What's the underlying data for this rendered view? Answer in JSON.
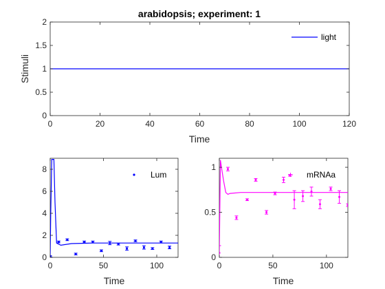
{
  "colors": {
    "blue": "#0000ff",
    "magenta": "#ff00ff",
    "axis": "#262626"
  },
  "chart_data": [
    {
      "type": "line",
      "title": "arabidopsis; experiment: 1",
      "xlabel": "Time",
      "ylabel": "Stimuli",
      "xlim": [
        0,
        120
      ],
      "ylim": [
        0,
        2
      ],
      "xticks": [
        "0",
        "20",
        "40",
        "60",
        "80",
        "100",
        "120"
      ],
      "yticks": [
        "0",
        "0.5",
        "1",
        "1.5",
        "2"
      ],
      "legend": "top-right",
      "series": [
        {
          "name": "light",
          "x": [
            0,
            120
          ],
          "y": [
            1,
            1
          ]
        }
      ]
    },
    {
      "type": "scatter",
      "title": "",
      "xlabel": "Time",
      "ylabel": "",
      "xlim": [
        0,
        120
      ],
      "ylim": [
        0,
        9
      ],
      "xticks": [
        "0",
        "50",
        "100"
      ],
      "yticks": [
        "0",
        "2",
        "4",
        "6",
        "8"
      ],
      "legend": "top-right",
      "series": [
        {
          "name": "Lum",
          "points": [
            [
              0,
              0.1,
              0.05
            ],
            [
              8,
              1.4,
              0.08
            ],
            [
              16,
              1.6,
              0.08
            ],
            [
              24,
              0.3,
              0.08
            ],
            [
              32,
              1.4,
              0.08
            ],
            [
              40,
              1.4,
              0.08
            ],
            [
              48,
              0.6,
              0.08
            ],
            [
              56,
              1.3,
              0.15
            ],
            [
              64,
              1.2,
              0.08
            ],
            [
              72,
              0.8,
              0.15
            ],
            [
              80,
              1.5,
              0.08
            ],
            [
              88,
              0.9,
              0.15
            ],
            [
              96,
              0.8,
              0.08
            ],
            [
              104,
              1.4,
              0.08
            ],
            [
              112,
              0.9,
              0.12
            ]
          ]
        },
        {
          "name": "",
          "x": [
            0,
            0.5,
            1.5,
            2.5,
            3.5,
            4.5,
            6,
            10,
            20,
            40,
            80,
            120
          ],
          "y": [
            0.1,
            4,
            8.9,
            8.9,
            8.9,
            5,
            1.3,
            1.1,
            1.25,
            1.3,
            1.3,
            1.3
          ]
        }
      ]
    },
    {
      "type": "scatter",
      "title": "",
      "xlabel": "Time",
      "ylabel": "",
      "xlim": [
        0,
        120
      ],
      "ylim": [
        0,
        1.1
      ],
      "xticks": [
        "0",
        "50",
        "100"
      ],
      "yticks": [
        "0",
        "0.5",
        "1"
      ],
      "legend": "top-right",
      "series": [
        {
          "name": "mRNAa",
          "points": [
            [
              0,
              0.05,
              0.08
            ],
            [
              8,
              0.98,
              0.02
            ],
            [
              16,
              0.44,
              0.02
            ],
            [
              26,
              0.64,
              0.01
            ],
            [
              34,
              0.86,
              0.015
            ],
            [
              44,
              0.5,
              0.02
            ],
            [
              52,
              0.71,
              0.015
            ],
            [
              60,
              0.86,
              0.03
            ],
            [
              66,
              0.91,
              0.01
            ],
            [
              70,
              0.64,
              0.1
            ],
            [
              78,
              0.68,
              0.06
            ],
            [
              86,
              0.73,
              0.05
            ],
            [
              94,
              0.59,
              0.05
            ],
            [
              104,
              0.76,
              0.02
            ],
            [
              112,
              0.67,
              0.07
            ],
            [
              120,
              0.58,
              0.015
            ]
          ]
        },
        {
          "name": "",
          "x": [
            0,
            1,
            2,
            4,
            6,
            8,
            10,
            20,
            40,
            80,
            120
          ],
          "y": [
            0.05,
            1.08,
            1.0,
            0.85,
            0.72,
            0.7,
            0.71,
            0.72,
            0.72,
            0.72,
            0.72
          ]
        }
      ]
    }
  ]
}
